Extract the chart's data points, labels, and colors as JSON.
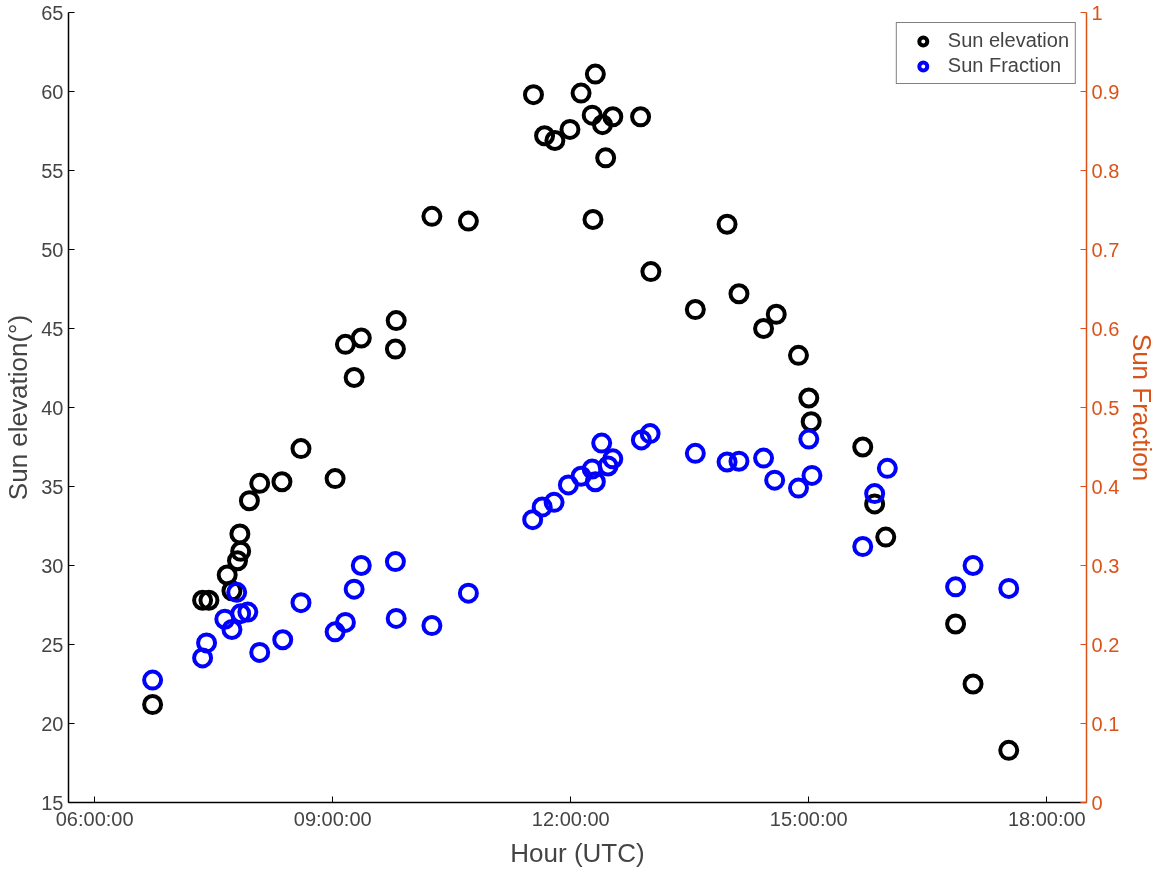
{
  "chart_data": {
    "type": "scatter",
    "xlabel": "Hour (UTC)",
    "ylabel": "Sun elevation(°)",
    "y2label": "Sun Fraction",
    "xlim": [
      5.67,
      18.5
    ],
    "xticks": [
      {
        "value": 6,
        "label": "06:00:00"
      },
      {
        "value": 9,
        "label": "09:00:00"
      },
      {
        "value": 12,
        "label": "12:00:00"
      },
      {
        "value": 15,
        "label": "15:00:00"
      },
      {
        "value": 18,
        "label": "18:00:00"
      }
    ],
    "ylim": [
      15,
      65
    ],
    "yticks": [
      15,
      20,
      25,
      30,
      35,
      40,
      45,
      50,
      55,
      60,
      65
    ],
    "y2lim": [
      0,
      1
    ],
    "y2ticks": [
      0,
      0.1,
      0.2,
      0.3,
      0.4,
      0.5,
      0.6,
      0.7,
      0.8,
      0.9,
      1
    ],
    "legend": "top right",
    "marker": "circle",
    "grid": false,
    "series": [
      {
        "name": "Sun elevation",
        "color": "#000000",
        "x": [
          6.73,
          7.36,
          7.44,
          7.67,
          7.73,
          7.8,
          7.84,
          7.83,
          7.95,
          8.08,
          8.36,
          8.6,
          9.03,
          9.16,
          9.27,
          9.36,
          9.79,
          9.8,
          10.25,
          10.71,
          11.53,
          11.67,
          11.8,
          11.99,
          12.13,
          12.27,
          12.31,
          12.28,
          12.4,
          12.53,
          12.44,
          12.88,
          13.01,
          13.57,
          13.97,
          14.12,
          14.43,
          14.59,
          14.87,
          15.0,
          15.03,
          15.68,
          15.83,
          15.97,
          16.85,
          17.07,
          17.52
        ],
        "values": [
          21.2,
          27.8,
          27.8,
          29.4,
          28.4,
          30.3,
          30.9,
          32.0,
          34.1,
          35.2,
          35.3,
          37.4,
          35.5,
          44.0,
          41.9,
          44.4,
          43.7,
          45.5,
          52.1,
          51.8,
          59.8,
          57.2,
          56.9,
          57.6,
          59.9,
          58.5,
          61.1,
          51.9,
          57.9,
          58.4,
          55.8,
          58.4,
          48.6,
          46.2,
          51.6,
          47.2,
          45.0,
          45.9,
          43.3,
          40.6,
          39.1,
          37.5,
          33.9,
          31.8,
          26.3,
          22.5,
          18.3
        ]
      },
      {
        "name": "Sun Fraction",
        "color": "#0000ff",
        "axis": "y2",
        "x": [
          6.73,
          7.36,
          7.41,
          7.64,
          7.73,
          7.79,
          7.84,
          7.93,
          8.08,
          8.37,
          8.6,
          9.03,
          9.16,
          9.27,
          9.36,
          9.79,
          9.8,
          10.25,
          10.71,
          11.52,
          11.64,
          11.79,
          11.97,
          12.13,
          12.27,
          12.31,
          12.39,
          12.47,
          12.53,
          12.89,
          13.0,
          13.57,
          13.97,
          14.12,
          14.43,
          14.57,
          14.87,
          15.04,
          15.0,
          15.68,
          15.83,
          15.99,
          16.85,
          17.07,
          17.52
        ],
        "values": [
          0.155,
          0.183,
          0.202,
          0.232,
          0.219,
          0.266,
          0.239,
          0.241,
          0.19,
          0.206,
          0.253,
          0.216,
          0.228,
          0.27,
          0.3,
          0.305,
          0.233,
          0.224,
          0.265,
          0.358,
          0.374,
          0.38,
          0.402,
          0.413,
          0.422,
          0.406,
          0.455,
          0.426,
          0.435,
          0.459,
          0.467,
          0.442,
          0.431,
          0.432,
          0.436,
          0.408,
          0.398,
          0.414,
          0.46,
          0.324,
          0.391,
          0.423,
          0.273,
          0.3,
          0.271
        ]
      }
    ]
  }
}
